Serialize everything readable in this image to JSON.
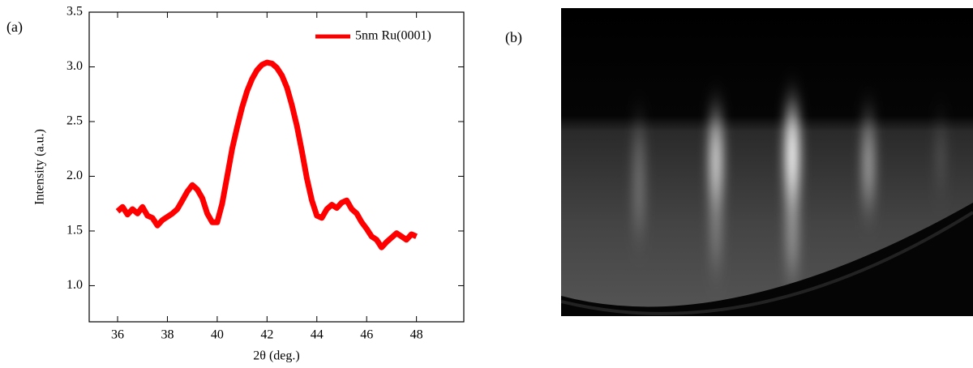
{
  "chart_data": {
    "type": "line",
    "panel_label": "(a)",
    "x_label": "2θ (deg.)",
    "y_label": "Intensity (a.u.)",
    "x": [
      36.0,
      36.2,
      36.4,
      36.6,
      36.8,
      37.0,
      37.2,
      37.4,
      37.6,
      37.8,
      38.0,
      38.2,
      38.4,
      38.6,
      38.8,
      39.0,
      39.2,
      39.4,
      39.6,
      39.8,
      40.0,
      40.2,
      40.4,
      40.6,
      40.8,
      41.0,
      41.2,
      41.4,
      41.6,
      41.8,
      42.0,
      42.2,
      42.4,
      42.6,
      42.8,
      43.0,
      43.2,
      43.4,
      43.6,
      43.8,
      44.0,
      44.2,
      44.4,
      44.6,
      44.8,
      45.0,
      45.2,
      45.4,
      45.6,
      45.8,
      46.0,
      46.2,
      46.4,
      46.6,
      46.8,
      47.0,
      47.2,
      47.4,
      47.6,
      47.8,
      48.0
    ],
    "series": [
      {
        "name": "5nm Ru(0001)",
        "color": "#ff0000",
        "values": [
          1.68,
          1.72,
          1.65,
          1.7,
          1.66,
          1.72,
          1.64,
          1.62,
          1.55,
          1.6,
          1.63,
          1.66,
          1.7,
          1.78,
          1.86,
          1.92,
          1.88,
          1.8,
          1.66,
          1.58,
          1.58,
          1.75,
          2.0,
          2.25,
          2.45,
          2.63,
          2.78,
          2.89,
          2.97,
          3.02,
          3.04,
          3.03,
          2.99,
          2.92,
          2.81,
          2.65,
          2.46,
          2.23,
          1.98,
          1.78,
          1.64,
          1.62,
          1.7,
          1.74,
          1.71,
          1.76,
          1.78,
          1.7,
          1.66,
          1.58,
          1.52,
          1.45,
          1.42,
          1.35,
          1.4,
          1.44,
          1.48,
          1.45,
          1.42,
          1.47,
          1.45
        ]
      }
    ],
    "xlim": [
      34.86,
      49.9
    ],
    "ylim": [
      0.67,
      3.5
    ],
    "xticks": [
      36,
      38,
      40,
      42,
      44,
      46,
      48
    ],
    "yticks": [
      {
        "value": 1,
        "label": "1.0"
      },
      1.5,
      {
        "value": 2,
        "label": "2.0"
      },
      2.5,
      {
        "value": 3,
        "label": "3.0"
      },
      3.5
    ],
    "legend": "upper right"
  },
  "image_panel": {
    "label": "(b)"
  }
}
